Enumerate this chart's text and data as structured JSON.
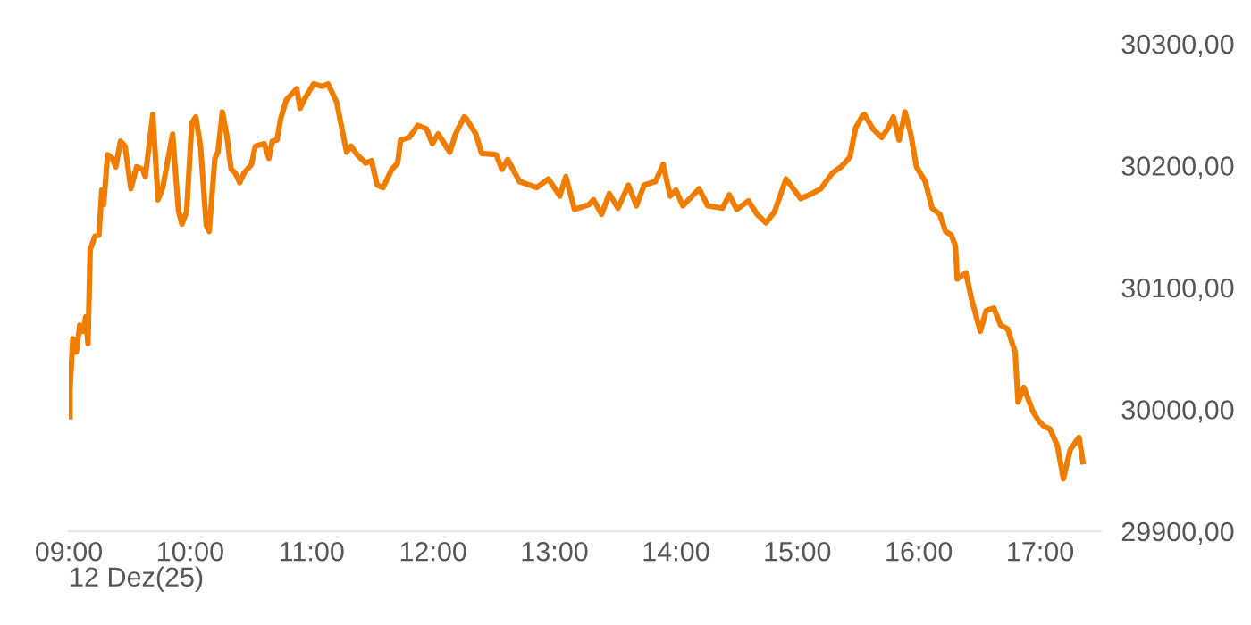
{
  "chart_data": {
    "type": "line",
    "xlabel": "12 Dez(25)",
    "xlim": [
      9,
      17.5
    ],
    "ylim": [
      29900,
      30300
    ],
    "xticks": [
      {
        "value": 9,
        "label": "09:00"
      },
      {
        "value": 10,
        "label": "10:00"
      },
      {
        "value": 11,
        "label": "11:00"
      },
      {
        "value": 12,
        "label": "12:00"
      },
      {
        "value": 13,
        "label": "13:00"
      },
      {
        "value": 14,
        "label": "14:00"
      },
      {
        "value": 15,
        "label": "15:00"
      },
      {
        "value": 16,
        "label": "16:00"
      },
      {
        "value": 17,
        "label": "17:00"
      }
    ],
    "yticks": [
      {
        "value": 29900,
        "label": "29900,00"
      },
      {
        "value": 30000,
        "label": "30000,00"
      },
      {
        "value": 30100,
        "label": "30100,00"
      },
      {
        "value": 30200,
        "label": "30200,00"
      },
      {
        "value": 30300,
        "label": "30300,00"
      }
    ],
    "grid": false,
    "marker": "none",
    "line_style": "solid",
    "x": [
      9.01,
      9.01,
      9.033,
      9.062,
      9.09,
      9.119,
      9.139,
      9.158,
      9.176,
      9.215,
      9.248,
      9.272,
      9.287,
      9.319,
      9.358,
      9.387,
      9.425,
      9.463,
      9.511,
      9.559,
      9.606,
      9.63,
      9.692,
      9.735,
      9.774,
      9.855,
      9.903,
      9.931,
      9.97,
      10.013,
      10.046,
      10.085,
      10.132,
      10.156,
      10.203,
      10.228,
      10.265,
      10.299,
      10.337,
      10.371,
      10.408,
      10.443,
      10.504,
      10.537,
      10.609,
      10.648,
      10.676,
      10.715,
      10.744,
      10.791,
      10.838,
      10.877,
      10.905,
      10.944,
      11.016,
      11.087,
      11.135,
      11.206,
      11.254,
      11.288,
      11.325,
      11.374,
      11.446,
      11.493,
      11.54,
      11.589,
      11.66,
      11.708,
      11.732,
      11.804,
      11.875,
      11.947,
      11.994,
      12.042,
      12.138,
      12.185,
      12.256,
      12.271,
      12.352,
      12.4,
      12.52,
      12.567,
      12.615,
      12.711,
      12.854,
      12.95,
      13.044,
      13.093,
      13.165,
      13.284,
      13.322,
      13.388,
      13.451,
      13.523,
      13.609,
      13.675,
      13.738,
      13.832,
      13.895,
      13.953,
      14.0,
      14.057,
      14.191,
      14.262,
      14.383,
      14.44,
      14.501,
      14.597,
      14.669,
      14.741,
      14.812,
      14.907,
      15.027,
      15.122,
      15.193,
      15.289,
      15.361,
      15.433,
      15.48,
      15.537,
      15.552,
      15.623,
      15.695,
      15.743,
      15.791,
      15.838,
      15.887,
      15.934,
      15.981,
      16.053,
      16.11,
      16.173,
      16.221,
      16.268,
      16.302,
      16.317,
      16.388,
      16.436,
      16.507,
      16.555,
      16.618,
      16.675,
      16.732,
      16.794,
      16.818,
      16.865,
      16.937,
      16.984,
      17.033,
      17.08,
      17.142,
      17.191,
      17.248,
      17.32,
      17.352
    ],
    "series": [
      {
        "color": "#f07d00",
        "values": [
          29994,
          30016,
          30058,
          30047,
          30069,
          30064,
          30076,
          30054,
          30131,
          30142,
          30143,
          30180,
          30168,
          30209,
          30206,
          30199,
          30220,
          30216,
          30181,
          30199,
          30197,
          30191,
          30242,
          30172,
          30182,
          30226,
          30163,
          30152,
          30162,
          30235,
          30240,
          30216,
          30151,
          30146,
          30206,
          30211,
          30244,
          30226,
          30197,
          30194,
          30186,
          30194,
          30201,
          30216,
          30218,
          30206,
          30220,
          30221,
          30238,
          30254,
          30259,
          30263,
          30247,
          30255,
          30267,
          30265,
          30267,
          30252,
          30228,
          30211,
          30216,
          30209,
          30202,
          30204,
          30184,
          30182,
          30197,
          30202,
          30221,
          30223,
          30233,
          30230,
          30218,
          30226,
          30211,
          30226,
          30240,
          30239,
          30226,
          30210,
          30209,
          30197,
          30205,
          30187,
          30182,
          30189,
          30175,
          30191,
          30164,
          30168,
          30172,
          30160,
          30177,
          30165,
          30184,
          30167,
          30184,
          30187,
          30201,
          30175,
          30180,
          30167,
          30181,
          30167,
          30165,
          30176,
          30164,
          30171,
          30160,
          30153,
          30162,
          30189,
          30173,
          30177,
          30181,
          30194,
          30199,
          30207,
          30231,
          30241,
          30242,
          30230,
          30223,
          30230,
          30240,
          30221,
          30244,
          30226,
          30199,
          30187,
          30165,
          30160,
          30146,
          30143,
          30134,
          30107,
          30112,
          30090,
          30064,
          30081,
          30083,
          30069,
          30066,
          30047,
          30006,
          30018,
          29999,
          29991,
          29986,
          29984,
          29970,
          29943,
          29967,
          29977,
          29957
        ]
      }
    ]
  }
}
